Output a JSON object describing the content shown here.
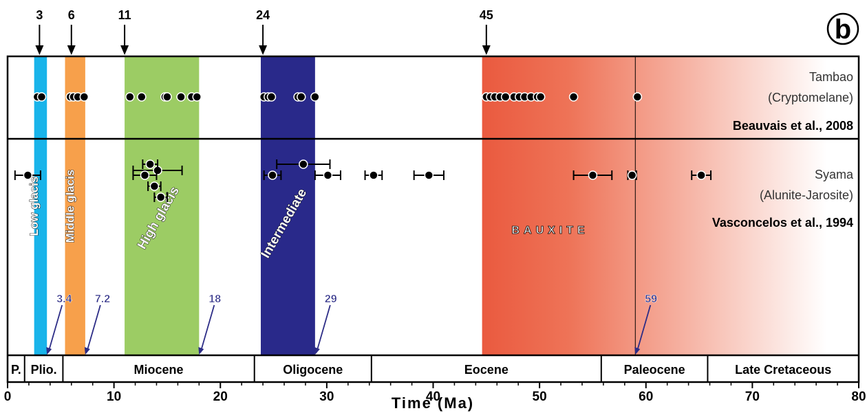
{
  "chart_data": {
    "type": "scatter",
    "panel_letter": "b",
    "xlabel": "Time (Ma)",
    "xlim": [
      0,
      80
    ],
    "x_ticks": [
      0,
      10,
      20,
      30,
      40,
      50,
      60,
      70,
      80
    ],
    "top_markers": [
      3,
      6,
      11,
      24,
      45
    ],
    "bands": [
      {
        "label": "Low glacis",
        "from": 2.5,
        "to": 3.7,
        "color": "#19b4ea",
        "end_label": "3.4"
      },
      {
        "label": "Middle glacis",
        "from": 5.4,
        "to": 7.3,
        "color": "#f7a04b",
        "end_label": "7.2"
      },
      {
        "label": "High glacis",
        "from": 11.0,
        "to": 18.0,
        "color": "#9ccc64",
        "end_label": "18"
      },
      {
        "label": "Intermediate",
        "from": 23.8,
        "to": 28.9,
        "color": "#29298a",
        "end_label": "29"
      }
    ],
    "bauxite": {
      "label": "BAUXITE",
      "from": 44.6,
      "to": 77.0,
      "solid_to": 59.0,
      "color": "#ea5a3f",
      "line_at": 59,
      "end_label": "59"
    },
    "epochs": [
      {
        "label": "P.",
        "from": 0,
        "to": 1.6
      },
      {
        "label": "Plio.",
        "from": 1.6,
        "to": 5.2
      },
      {
        "label": "Miocene",
        "from": 5.2,
        "to": 23.2
      },
      {
        "label": "Oligocene",
        "from": 23.2,
        "to": 34.2
      },
      {
        "label": "Eocene",
        "from": 34.2,
        "to": 55.8
      },
      {
        "label": "Paleocene",
        "from": 55.8,
        "to": 65.8
      },
      {
        "label": "Late Cretaceous",
        "from": 65.8,
        "to": 80
      }
    ],
    "series": [
      {
        "name": "Tambao",
        "mineral": "(Cryptomelane)",
        "reference": "Beauvais et al., 2008",
        "points": [
          2.8,
          3.2,
          5.9,
          6.2,
          6.6,
          7.2,
          11.5,
          12.6,
          14.8,
          15.0,
          16.3,
          17.3,
          17.8,
          24.1,
          24.5,
          24.8,
          27.3,
          27.6,
          28.9,
          45.0,
          45.4,
          45.8,
          46.3,
          46.8,
          47.6,
          48.1,
          48.6,
          49.2,
          49.8,
          50.1,
          53.2,
          59.2
        ]
      },
      {
        "name": "Syama",
        "mineral": "(Alunite-Jarosite)",
        "reference": "Vasconcelos et al., 1994",
        "points": [
          {
            "x": 1.9,
            "err": 1.2,
            "row": 3
          },
          {
            "x": 14.1,
            "err": 2.3,
            "row": 0
          },
          {
            "x": 13.4,
            "err": 0.7,
            "row": 1
          },
          {
            "x": 12.9,
            "err": 1.1,
            "row": 3
          },
          {
            "x": 13.8,
            "err": 0.6,
            "row": 4
          },
          {
            "x": 14.4,
            "err": 0.6,
            "row": 5
          },
          {
            "x": 27.8,
            "err": 2.5,
            "row": 1
          },
          {
            "x": 24.9,
            "err": 0.8,
            "row": 3
          },
          {
            "x": 30.1,
            "err": 1.2,
            "row": 3
          },
          {
            "x": 34.4,
            "err": 0.8,
            "row": 3
          },
          {
            "x": 39.6,
            "err": 1.4,
            "row": 3
          },
          {
            "x": 55.0,
            "err": 1.8,
            "row": 3
          },
          {
            "x": 58.7,
            "err": 0.4,
            "row": 3
          },
          {
            "x": 65.2,
            "err": 0.9,
            "row": 3
          }
        ]
      }
    ]
  }
}
